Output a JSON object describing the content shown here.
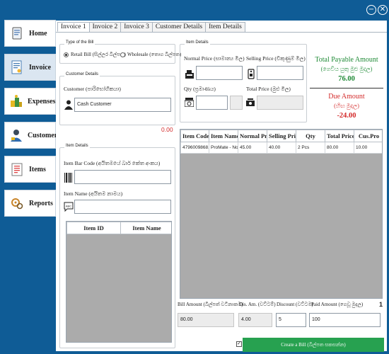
{
  "window": {
    "minimize_symbol": "−",
    "close_symbol": "✕"
  },
  "nav": {
    "items": [
      {
        "label": "Home",
        "icon": "home-icon"
      },
      {
        "label": "Invoice",
        "icon": "invoice-icon"
      },
      {
        "label": "Expenses",
        "icon": "expenses-icon"
      },
      {
        "label": "Customers",
        "icon": "customers-icon"
      },
      {
        "label": "Items",
        "icon": "items-icon"
      },
      {
        "label": "Reports",
        "icon": "reports-icon"
      }
    ],
    "active": "Invoice"
  },
  "tabs": [
    "Invoice 1",
    "Invoice 2",
    "Invoice 3",
    "Customer Details",
    "Item Details"
  ],
  "bill_type": {
    "title": "Type of the Bill",
    "retail_label": "Retail Bill (සිල්ලර බිල්පත)",
    "wholesale_label": "Wholesale (තොග බිල්පත)",
    "selected": "retail"
  },
  "customer": {
    "title": "Customer Details",
    "field_label": "Customer (පාරිභෝගිකයා)",
    "value": "Cash Customer",
    "balance": "0.00"
  },
  "item_details_left": {
    "title": "Item Details",
    "barcode_label": "Item Bar Code (අයිතමයේ බාර් කේත අංකය)",
    "barcode_value": "",
    "name_label": "Item Name (අයිතම නාමය)",
    "name_value": "",
    "columns": [
      "Item ID",
      "Item Name"
    ]
  },
  "item_details_right": {
    "title": "Item Details",
    "normal_price_label": "Normal Price (සාමාන්‍ය මිල)",
    "normal_price_value": "",
    "selling_price_label": "Selling Price (විකුණුම් මිල)",
    "selling_price_value": "",
    "qty_label": "Qty (ප්‍රමාණය)",
    "qty_value": "",
    "total_price_label": "Total Price (මුළු මිල)",
    "total_price_value": ""
  },
  "totals": {
    "payable_label": "Total Payable Amount",
    "payable_sub": "(ගෙවිය යුතු මුළු මුදල)",
    "payable_value": "76.00",
    "due_label": "Due Amount",
    "due_sub": "(හිඟ මුදල)",
    "due_value": "-24.00"
  },
  "bill_grid": {
    "columns": [
      "Item Code",
      "Item Name",
      "Normal Pr...",
      "Selling Pri...",
      "Qty",
      "Total Price",
      "Cus.Pro"
    ],
    "rows": [
      [
        "4796009868...",
        "ProMate - Not...",
        "45.00",
        "40.00",
        "2 Pcs",
        "80.00",
        "10.00"
      ]
    ]
  },
  "summary": {
    "bill_amount_label": "Bill Amount (බිල්පත් වටිනාකම)",
    "bill_amount_value": "80.00",
    "dis_amount_label": "Dis. Am. (වට්ටම්)",
    "dis_amount_value": "4.00",
    "discount_label": "Discount (වට්ටම)",
    "discount_value": "5",
    "paid_amount_label": "Paid Amount (ගෙවූ මුදල)",
    "paid_amount_value": "100",
    "item_count": "1"
  },
  "create_button": {
    "label": "Create a Bill (බිල්පත සකසන්න)",
    "checkbox_checked": true
  },
  "colors": {
    "frame": "#0f5c96",
    "accent_green": "#1f8a36",
    "due_red": "#d32b2b",
    "create_button": "#27a150"
  }
}
